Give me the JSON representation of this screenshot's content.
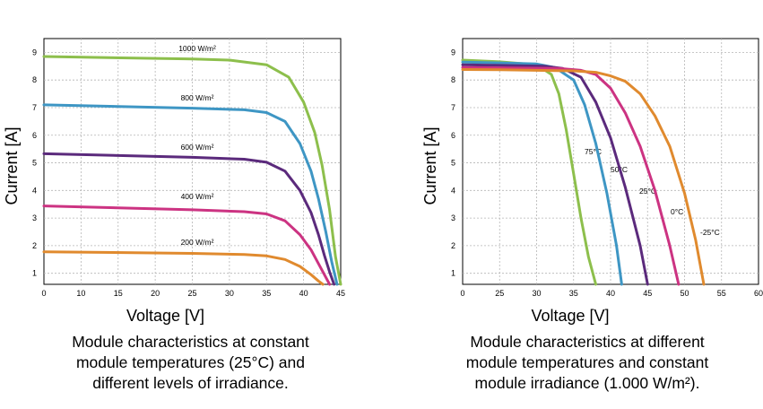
{
  "chart_data": [
    {
      "type": "line",
      "xlabel": "Voltage [V]",
      "ylabel": "Current [A]",
      "xlim": [
        5,
        45
      ],
      "ylim": [
        0.6,
        9.5
      ],
      "xticks": [
        "0",
        "10",
        "15",
        "20",
        "25",
        "30",
        "35",
        "40",
        "45"
      ],
      "yticks": [
        "1",
        "2",
        "3",
        "4",
        "5",
        "6",
        "7",
        "8",
        "9"
      ],
      "grid": true,
      "caption": "Module characteristics at constant\nmodule temperatures (25°C) and\ndifferent levels of irradiance.",
      "series": [
        {
          "name": "1000 W/m²",
          "color": "#8dbf4c",
          "x": [
            5,
            25,
            30,
            35,
            38,
            40,
            41.5,
            42.5,
            43.5,
            44.3,
            45
          ],
          "y": [
            8.85,
            8.76,
            8.72,
            8.55,
            8.1,
            7.2,
            6.1,
            4.9,
            3.3,
            1.6,
            0.6
          ]
        },
        {
          "name": "800 W/m²",
          "color": "#3e96c4",
          "x": [
            5,
            25,
            32,
            35,
            37.5,
            39.5,
            41,
            42,
            43,
            43.8,
            44.5
          ],
          "y": [
            7.1,
            6.98,
            6.92,
            6.82,
            6.5,
            5.7,
            4.7,
            3.7,
            2.5,
            1.4,
            0.6
          ]
        },
        {
          "name": "600 W/m²",
          "color": "#5b2a7c",
          "x": [
            5,
            25,
            32,
            35,
            37.5,
            39.5,
            41,
            42,
            42.8,
            43.5,
            44.1
          ],
          "y": [
            5.33,
            5.2,
            5.13,
            5.02,
            4.7,
            4.0,
            3.2,
            2.4,
            1.65,
            1.05,
            0.6
          ]
        },
        {
          "name": "400 W/m²",
          "color": "#cc3382",
          "x": [
            5,
            25,
            32,
            35,
            37.5,
            39.5,
            41,
            42,
            42.8,
            43.5
          ],
          "y": [
            3.44,
            3.3,
            3.23,
            3.15,
            2.9,
            2.4,
            1.85,
            1.35,
            0.95,
            0.6
          ]
        },
        {
          "name": "200 W/m²",
          "color": "#e08a2e",
          "x": [
            5,
            25,
            32,
            35,
            37.5,
            39.5,
            41,
            42,
            42.6
          ],
          "y": [
            1.78,
            1.72,
            1.68,
            1.63,
            1.5,
            1.25,
            0.95,
            0.72,
            0.6
          ]
        }
      ]
    },
    {
      "type": "line",
      "xlabel": "Voltage [V]",
      "ylabel": "Current [A]",
      "xlim": [
        0,
        60
      ],
      "ylim": [
        0.6,
        9.5
      ],
      "xticks": [
        "0",
        "25",
        "30",
        "35",
        "40",
        "45",
        "50",
        "55",
        "60"
      ],
      "yticks": [
        "1",
        "2",
        "3",
        "4",
        "5",
        "6",
        "7",
        "8",
        "9"
      ],
      "grid": true,
      "caption": "Module characteristics at different\nmodule temperatures and constant\nmodule irradiance (1.000 W/m²).",
      "series": [
        {
          "name": "75°C",
          "color": "#8dbf4c",
          "x": [
            0,
            25,
            30,
            32,
            33,
            34,
            35,
            36,
            37,
            38
          ],
          "y": [
            8.72,
            8.66,
            8.55,
            8.2,
            7.5,
            6.2,
            4.6,
            3.0,
            1.6,
            0.6
          ]
        },
        {
          "name": "50°C",
          "color": "#3e96c4",
          "x": [
            0,
            25,
            30,
            32.5,
            35,
            36.5,
            38,
            39.5,
            40.8,
            41.5
          ],
          "y": [
            8.65,
            8.62,
            8.58,
            8.45,
            8.0,
            7.1,
            5.7,
            3.9,
            2.0,
            0.6
          ]
        },
        {
          "name": "25°C",
          "color": "#5b2a7c",
          "x": [
            0,
            25,
            31,
            33.5,
            36,
            38,
            40,
            42,
            44,
            45
          ],
          "y": [
            8.55,
            8.53,
            8.5,
            8.42,
            8.1,
            7.2,
            5.9,
            4.1,
            2.0,
            0.6
          ]
        },
        {
          "name": "0°C",
          "color": "#cc3382",
          "x": [
            0,
            25,
            33,
            36,
            38,
            40,
            42,
            44,
            46,
            48,
            49.2
          ],
          "y": [
            8.45,
            8.44,
            8.42,
            8.35,
            8.2,
            7.7,
            6.8,
            5.6,
            4.0,
            2.0,
            0.6
          ]
        },
        {
          "name": "-25°C",
          "color": "#e08a2e",
          "x": [
            0,
            25,
            35,
            38,
            40,
            42,
            44,
            46,
            48,
            50,
            51.5,
            52.6
          ],
          "y": [
            8.38,
            8.37,
            8.33,
            8.28,
            8.15,
            7.95,
            7.5,
            6.7,
            5.6,
            3.9,
            2.2,
            0.6
          ]
        }
      ]
    }
  ]
}
